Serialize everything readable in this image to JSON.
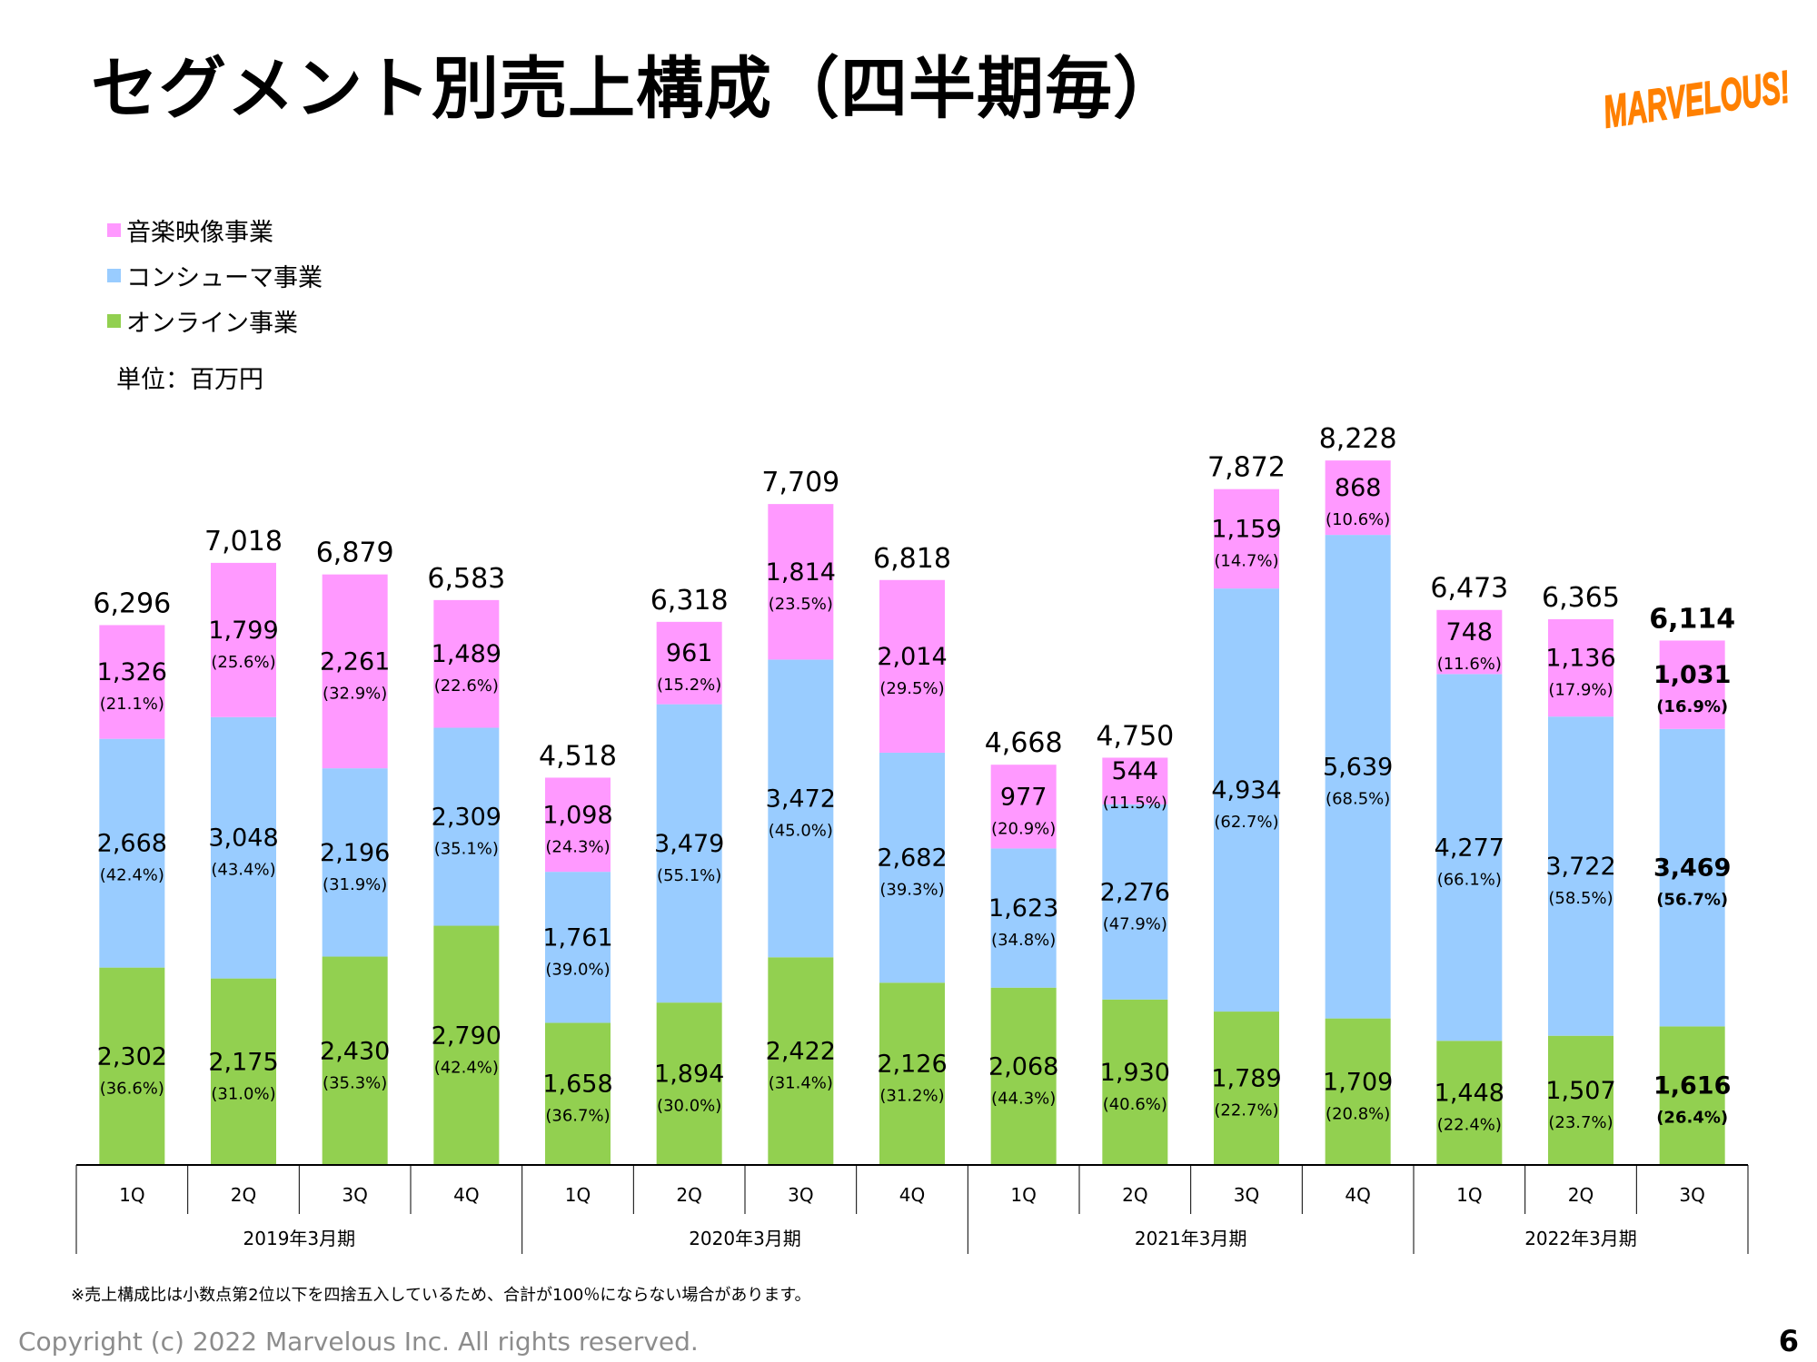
{
  "title": "セグメント別売上構成（四半期毎）",
  "logo_text": "MARVELOUS!",
  "unit_label": "単位：百万円",
  "footnote": "※売上構成比は小数点第2位以下を四捨五入しているため、合計が100％にならない場合があります。",
  "copyright": "Copyright (c) 2022 Marvelous Inc. All rights reserved.",
  "page_number": "6",
  "colors": {
    "music": "#ff99ff",
    "consumer": "#99ccff",
    "online": "#92d050",
    "logo": "#ff8000"
  },
  "chart_data": {
    "type": "bar",
    "stacked": true,
    "legend_position": "top-left",
    "grid": false,
    "categories": [
      "1Q",
      "2Q",
      "3Q",
      "4Q",
      "1Q",
      "2Q",
      "3Q",
      "4Q",
      "1Q",
      "2Q",
      "3Q",
      "4Q",
      "1Q",
      "2Q",
      "3Q"
    ],
    "groups": [
      {
        "label": "2019年3月期",
        "count": 4
      },
      {
        "label": "2020年3月期",
        "count": 4
      },
      {
        "label": "2021年3月期",
        "count": 4
      },
      {
        "label": "2022年3月期",
        "count": 3
      }
    ],
    "series": [
      {
        "name": "オンライン事業",
        "color": "#92d050",
        "values": [
          2302,
          2175,
          2430,
          2790,
          1658,
          1894,
          2422,
          2126,
          2068,
          1930,
          1789,
          1709,
          1448,
          1507,
          1616
        ],
        "value_labels": [
          "2,302",
          "2,175",
          "2,430",
          "2,790",
          "1,658",
          "1,894",
          "2,422",
          "2,126",
          "2,068",
          "1,930",
          "1,789",
          "1,709",
          "1,448",
          "1,507",
          "1,616"
        ],
        "percent_labels": [
          "(36.6%)",
          "(31.0%)",
          "(35.3%)",
          "(42.4%)",
          "(36.7%)",
          "(30.0%)",
          "(31.4%)",
          "(31.2%)",
          "(44.3%)",
          "(40.6%)",
          "(22.7%)",
          "(20.8%)",
          "(22.4%)",
          "(23.7%)",
          "(26.4%)"
        ]
      },
      {
        "name": "コンシューマ事業",
        "color": "#99ccff",
        "values": [
          2668,
          3048,
          2196,
          2309,
          1761,
          3479,
          3472,
          2682,
          1623,
          2276,
          4934,
          5639,
          4277,
          3722,
          3469
        ],
        "value_labels": [
          "2,668",
          "3,048",
          "2,196",
          "2,309",
          "1,761",
          "3,479",
          "3,472",
          "2,682",
          "1,623",
          "2,276",
          "4,934",
          "5,639",
          "4,277",
          "3,722",
          "3,469"
        ],
        "percent_labels": [
          "(42.4%)",
          "(43.4%)",
          "(31.9%)",
          "(35.1%)",
          "(39.0%)",
          "(55.1%)",
          "(45.0%)",
          "(39.3%)",
          "(34.8%)",
          "(47.9%)",
          "(62.7%)",
          "(68.5%)",
          "(66.1%)",
          "(58.5%)",
          "(56.7%)"
        ]
      },
      {
        "name": "音楽映像事業",
        "color": "#ff99ff",
        "values": [
          1326,
          1799,
          2261,
          1489,
          1098,
          961,
          1814,
          2014,
          977,
          544,
          1159,
          868,
          748,
          1136,
          1031
        ],
        "value_labels": [
          "1,326",
          "1,799",
          "2,261",
          "1,489",
          "1,098",
          "961",
          "1,814",
          "2,014",
          "977",
          "544",
          "1,159",
          "868",
          "748",
          "1,136",
          "1,031"
        ],
        "percent_labels": [
          "(21.1%)",
          "(25.6%)",
          "(32.9%)",
          "(22.6%)",
          "(24.3%)",
          "(15.2%)",
          "(23.5%)",
          "(29.5%)",
          "(20.9%)",
          "(11.5%)",
          "(14.7%)",
          "(10.6%)",
          "(11.6%)",
          "(17.9%)",
          "(16.9%)"
        ]
      }
    ],
    "totals": [
      6296,
      7018,
      6879,
      6583,
      4518,
      6318,
      7709,
      6818,
      4668,
      4750,
      7872,
      8228,
      6473,
      6365,
      6114
    ],
    "total_labels": [
      "6,296",
      "7,018",
      "6,879",
      "6,583",
      "4,518",
      "6,318",
      "7,709",
      "6,818",
      "4,668",
      "4,750",
      "7,872",
      "8,228",
      "6,473",
      "6,365",
      "6,114"
    ],
    "highlight_last": true,
    "ylim": [
      0,
      8228
    ]
  }
}
